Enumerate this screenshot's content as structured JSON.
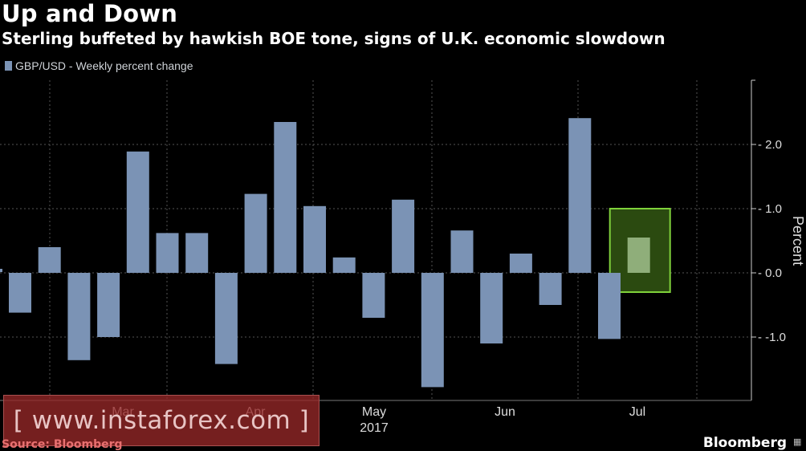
{
  "chart_data": {
    "type": "bar",
    "title": "Up and Down",
    "subtitle": "Sterling buffeted by hawkish BOE tone, signs of U.K. economic slowdown",
    "legend": [
      "GBP/USD - Weekly percent change"
    ],
    "ylabel": "Percent",
    "ylim": [
      -2.0,
      3.0
    ],
    "yticks": [
      {
        "value": 2.0,
        "label": "2.0"
      },
      {
        "value": 1.0,
        "label": "1.0"
      },
      {
        "value": 0.0,
        "label": "0.0"
      },
      {
        "value": -1.0,
        "label": "-1.0"
      }
    ],
    "xtick_labels": [
      {
        "label": "Mar",
        "sub": ""
      },
      {
        "label": "Apr",
        "sub": ""
      },
      {
        "label": "May",
        "sub": "2017"
      },
      {
        "label": "Jun",
        "sub": ""
      },
      {
        "label": "Jul",
        "sub": ""
      }
    ],
    "series": [
      {
        "name": "GBP/USD - Weekly percent change",
        "color": "#7b93b5",
        "values": [
          -0.62,
          0.4,
          -1.36,
          -1.0,
          1.89,
          0.62,
          0.62,
          -1.42,
          1.23,
          2.35,
          1.04,
          0.24,
          -0.7,
          1.14,
          -1.78,
          0.66,
          -1.1,
          0.3,
          -0.5,
          2.41,
          -1.03,
          0.55
        ]
      }
    ],
    "highlight": {
      "bar_index": 21,
      "range": [
        -0.3,
        1.0
      ],
      "color": "#2b4a10",
      "border": "#7fd13b"
    }
  },
  "watermark": "[ www.instaforex.com ]",
  "source": "Source: Bloomberg",
  "brand": "Bloomberg"
}
